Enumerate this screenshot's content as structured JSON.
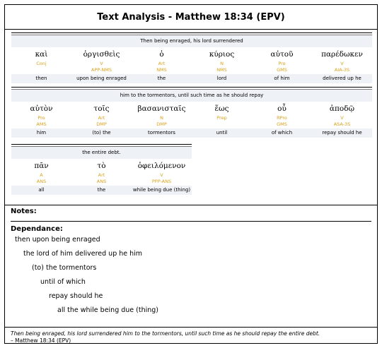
{
  "title": "Text Analysis - Matthew 18:34 (EPV)",
  "blocks": [
    {
      "phrase": "Then being enraged, his lord surrendered",
      "words": [
        {
          "greek": "καὶ",
          "codes": [
            "Conj",
            ""
          ],
          "gloss": "then"
        },
        {
          "greek": "ὀργισθεὶς",
          "codes": [
            "V",
            "APP-NMS"
          ],
          "gloss": "upon being enraged"
        },
        {
          "greek": "ὁ",
          "codes": [
            "Art",
            "NMS"
          ],
          "gloss": "the"
        },
        {
          "greek": "κύριος",
          "codes": [
            "N",
            "NMS"
          ],
          "gloss": "lord"
        },
        {
          "greek": "αὐτοῦ",
          "codes": [
            "Pro",
            "GMS"
          ],
          "gloss": "of him"
        },
        {
          "greek": "παρέδωκεν",
          "codes": [
            "V",
            "AIA-3S"
          ],
          "gloss": "delivered up he"
        }
      ]
    },
    {
      "phrase": "him to the tormentors, until such time as he should repay",
      "words": [
        {
          "greek": "αὐτὸν",
          "codes": [
            "Pro",
            "AMS"
          ],
          "gloss": "him"
        },
        {
          "greek": "τοῖς",
          "codes": [
            "Art",
            "DMP"
          ],
          "gloss": "(to) the"
        },
        {
          "greek": "βασανισταῖς",
          "codes": [
            "N",
            "DMP"
          ],
          "gloss": "tormentors"
        },
        {
          "greek": "ἕως",
          "codes": [
            "Prep",
            ""
          ],
          "gloss": "until"
        },
        {
          "greek": "οὗ",
          "codes": [
            "RPro",
            "GMS"
          ],
          "gloss": "of which"
        },
        {
          "greek": "ἀποδῷ",
          "codes": [
            "V",
            "ASA-3S"
          ],
          "gloss": "repay should he"
        }
      ]
    },
    {
      "phrase": "the entire debt.",
      "words": [
        {
          "greek": "πᾶν",
          "codes": [
            "A",
            "ANS"
          ],
          "gloss": "all"
        },
        {
          "greek": "τὸ",
          "codes": [
            "Art",
            "ANS"
          ],
          "gloss": "the"
        },
        {
          "greek": "ὀφειλόμενον",
          "codes": [
            "V",
            "PPP-ANS"
          ],
          "gloss": "while being due (thing)"
        }
      ]
    }
  ],
  "notes_label": "Notes:",
  "dependance_label": "Dependance:",
  "dependance": [
    "then upon being enraged",
    "the lord of him delivered up he him",
    "(to) the tormentors",
    "until of which",
    "repay should he",
    "all the while being due (thing)"
  ],
  "footer": {
    "text": "Then being enraged, his lord surrendered him to the tormentors, until such time as he should repay the entire debt.",
    "reference": "– Matthew 18:34 (EPV)"
  },
  "colors": {
    "code": "#d9a21a",
    "row_bg": "#eef1f6"
  }
}
